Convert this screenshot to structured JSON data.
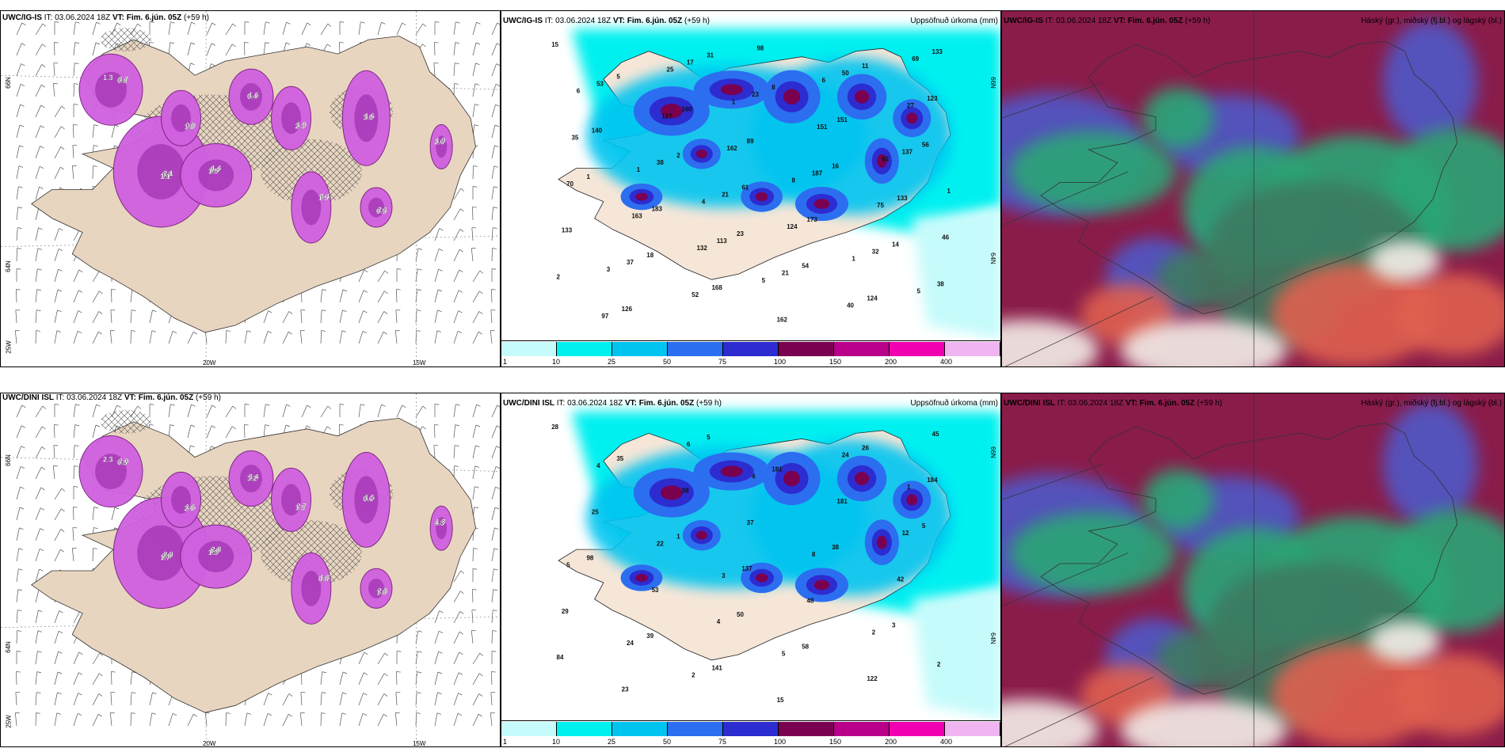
{
  "panels": [
    {
      "id": "p1",
      "title_model": "UWC/IG-IS",
      "title_it": " IT: 03.06.2024 18Z ",
      "title_vt": "VT: Fim. 6.jún. 05Z",
      "title_lead": " (+59 h)",
      "right": ""
    },
    {
      "id": "p2",
      "title_model": "UWC/IG-IS",
      "title_it": " IT: 03.06.2024 18Z ",
      "title_vt": "VT: Fim. 6.jún. 05Z",
      "title_lead": " (+59 h)",
      "right": "Uppsöfnuð úrkoma (mm)"
    },
    {
      "id": "p3",
      "title_model": "UWC/IG-IS",
      "title_it": " IT: 03.06.2024 18Z ",
      "title_vt": "VT: Fim. 6.jún. 05Z",
      "title_lead": " (+59 h)",
      "right": "Háský (gr.), miðský (fj.bl.) og lágský (bl.)"
    },
    {
      "id": "p4",
      "title_model": "UWC/DINI ISL",
      "title_it": " IT: 03.06.2024 18Z ",
      "title_vt": "VT: Fim. 6.jún. 05Z",
      "title_lead": " (+59 h)",
      "right": ""
    },
    {
      "id": "p5",
      "title_model": "UWC/DINI ISL",
      "title_it": " IT: 03.06.2024 18Z ",
      "title_vt": "VT: Fim. 6.jún. 05Z",
      "title_lead": " (+59 h)",
      "right": "Uppsöfnuð úrkoma (mm)"
    },
    {
      "id": "p6",
      "title_model": "UWC/DINI ISL",
      "title_it": " IT: 03.06.2024 18Z ",
      "title_vt": "VT: Fim. 6.jún. 05Z",
      "title_lead": " (+59 h)",
      "right": "Háský (gr.), miðský (fj.bl.) og lágský (bl.)"
    }
  ],
  "axes": {
    "lat66": "66N",
    "lat64": "64N",
    "lon25": "25W",
    "lon20": "20W",
    "lon15": "15W"
  },
  "colorbar": {
    "ticks": [
      "1",
      "10",
      "25",
      "50",
      "75",
      "100",
      "150",
      "200",
      "400"
    ],
    "colors": [
      "#c6fbfb",
      "#00f0f0",
      "#00c4f0",
      "#2c6ef0",
      "#2c2cd0",
      "#7a0050",
      "#b8008a",
      "#f000b0",
      "#f0b4f0"
    ]
  },
  "top_precip_labels": [
    "15",
    "23",
    "56",
    "31",
    "14",
    "2",
    "11",
    "18",
    "16",
    "5",
    "54",
    "1",
    "8",
    "2",
    "61",
    "123",
    "168",
    "133",
    "160",
    "124",
    "183",
    "151",
    "126",
    "173",
    "140",
    "162",
    "133",
    "89",
    "133",
    "113",
    "137",
    "17",
    "32",
    "38",
    "50",
    "37",
    "187",
    "53",
    "21",
    "70",
    "23",
    "38",
    "21",
    "27",
    "52",
    "75",
    "127",
    "40",
    "163",
    "151",
    "97",
    "124",
    "35",
    "98",
    "46",
    "162",
    "69",
    "132",
    "62",
    "25",
    "1",
    "1",
    "6",
    "3",
    "8",
    "6",
    "5",
    "1",
    "1",
    "5",
    "4"
  ],
  "bottom_precip_labels": [
    "28",
    "50",
    "5",
    "5",
    "3",
    "1",
    "26",
    "39",
    "38",
    "35",
    "58",
    "98",
    "181",
    "84",
    "137",
    "184",
    "141",
    "42",
    "38",
    "122",
    "53",
    "181",
    "23",
    "48",
    "25",
    "15",
    "29",
    "37",
    "45",
    "4",
    "12",
    "6",
    "2",
    "22",
    "24",
    "24",
    "8",
    "4",
    "5",
    "5",
    "4",
    "2",
    "3",
    "1",
    "2"
  ],
  "top_wind_values": [
    "1.3",
    "2.1",
    "1.4",
    "1.9",
    "1.6",
    "3.4",
    "2.1",
    "1.9",
    "0.9",
    "1.6",
    "3.7",
    "0.7",
    "1.4",
    "2.3",
    "3.0",
    "1.5",
    "0.5",
    "2.6",
    "1.8",
    "0.4",
    "0.8",
    "1.1",
    "1.5"
  ],
  "bottom_wind_values": [
    "2.3",
    "2.9",
    "2.8",
    "2.7",
    "1.5",
    "1.8",
    "2.3",
    "1.3",
    "1.6",
    "3.4",
    "2.0",
    "2.9",
    "1.9",
    "1.5",
    "0.6",
    "0.8",
    "1.8",
    "4.3",
    "2.6",
    "3.2",
    "0.5",
    "1.7",
    "1.3"
  ]
}
